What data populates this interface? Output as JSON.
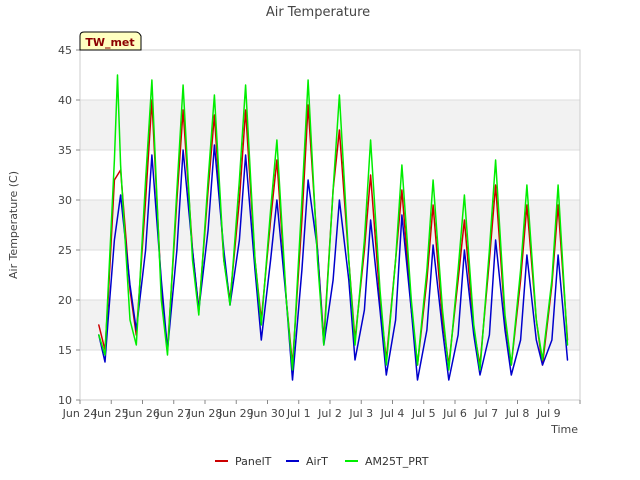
{
  "chart_data": {
    "type": "line",
    "title": "Air Temperature",
    "badge": "TW_met",
    "xlabel": "Time",
    "ylabel": "Air Temperature (C)",
    "ylim": [
      10,
      45
    ],
    "yticks": [
      10,
      15,
      20,
      25,
      30,
      35,
      40,
      45
    ],
    "xlim": [
      0,
      16
    ],
    "xticks": [
      0,
      1,
      2,
      3,
      4,
      5,
      6,
      7,
      8,
      9,
      10,
      11,
      12,
      13,
      14,
      15,
      16
    ],
    "xtick_labels": [
      "Jun 24",
      "Jun 25",
      "Jun 26",
      "Jun 27",
      "Jun 28",
      "Jun 29",
      "Jun 30",
      "Jul 1",
      "Jul 2",
      "Jul 3",
      "Jul 4",
      "Jul 5",
      "Jul 6",
      "Jul 7",
      "Jul 8",
      "Jul 9",
      ""
    ],
    "x_units": "days since Jun 23 00:00",
    "grid": true,
    "banded_background": true,
    "legend_position": "bottom",
    "series": [
      {
        "name": "PanelT",
        "color": "#cc0000",
        "x": [
          0.6,
          0.8,
          0.9,
          1.1,
          1.3,
          1.6,
          1.8,
          2.1,
          2.3,
          2.6,
          2.8,
          3.1,
          3.3,
          3.6,
          3.8,
          4.1,
          4.3,
          4.6,
          4.8,
          5.1,
          5.3,
          5.6,
          5.8,
          6.1,
          6.3,
          6.6,
          6.8,
          7.1,
          7.3,
          7.6,
          7.8,
          8.1,
          8.3,
          8.6,
          8.8,
          9.1,
          9.3,
          9.6,
          9.8,
          10.1,
          10.3,
          10.6,
          10.8,
          11.1,
          11.3,
          11.6,
          11.8,
          12.1,
          12.3,
          12.6,
          12.8,
          13.1,
          13.3,
          13.6,
          13.8,
          14.1,
          14.3,
          14.6,
          14.8,
          15.1,
          15.3,
          15.6
        ],
        "y": [
          17.5,
          15.0,
          20.0,
          32.0,
          33.0,
          21.0,
          16.5,
          30.0,
          40.0,
          21.0,
          15.0,
          30.0,
          39.0,
          25.0,
          19.0,
          31.0,
          38.5,
          24.0,
          20.0,
          30.0,
          39.0,
          24.0,
          18.0,
          28.0,
          34.0,
          20.0,
          13.5,
          28.0,
          39.5,
          25.0,
          16.0,
          31.0,
          37.0,
          24.0,
          16.0,
          25.0,
          32.5,
          20.0,
          14.0,
          24.0,
          31.0,
          19.0,
          13.5,
          22.0,
          29.5,
          18.0,
          13.5,
          22.0,
          28.0,
          17.0,
          13.5,
          24.0,
          31.5,
          18.0,
          13.5,
          22.0,
          29.5,
          18.0,
          13.5,
          21.5,
          29.5,
          16.0
        ]
      },
      {
        "name": "AirT",
        "color": "#0000cc",
        "x": [
          0.6,
          0.8,
          0.9,
          1.1,
          1.3,
          1.6,
          1.8,
          2.1,
          2.3,
          2.6,
          2.8,
          3.1,
          3.3,
          3.6,
          3.8,
          4.1,
          4.3,
          4.6,
          4.8,
          5.1,
          5.3,
          5.6,
          5.8,
          6.1,
          6.3,
          6.6,
          6.8,
          7.1,
          7.3,
          7.6,
          7.8,
          8.1,
          8.3,
          8.6,
          8.8,
          9.1,
          9.3,
          9.6,
          9.8,
          10.1,
          10.3,
          10.6,
          10.8,
          11.1,
          11.3,
          11.6,
          11.8,
          12.1,
          12.3,
          12.6,
          12.8,
          13.1,
          13.3,
          13.6,
          13.8,
          14.1,
          14.3,
          14.6,
          14.8,
          15.1,
          15.3,
          15.6
        ],
        "y": [
          16.5,
          13.8,
          18.0,
          26.0,
          30.5,
          21.5,
          17.0,
          25.0,
          34.5,
          22.0,
          15.0,
          25.0,
          35.0,
          25.0,
          19.0,
          27.0,
          35.5,
          25.0,
          19.5,
          26.0,
          34.5,
          23.0,
          16.0,
          24.0,
          30.0,
          20.0,
          12.0,
          23.0,
          32.0,
          25.0,
          15.5,
          22.0,
          30.0,
          22.0,
          14.0,
          19.0,
          28.0,
          19.0,
          12.5,
          18.0,
          28.5,
          19.0,
          12.0,
          17.0,
          25.5,
          17.0,
          12.0,
          16.5,
          25.0,
          16.5,
          12.5,
          16.5,
          26.0,
          17.0,
          12.5,
          16.0,
          24.5,
          16.0,
          13.5,
          16.0,
          24.5,
          14.0
        ]
      },
      {
        "name": "AM25T_PRT",
        "color": "#00ee00",
        "x": [
          0.6,
          0.8,
          0.9,
          1.1,
          1.2,
          1.3,
          1.6,
          1.8,
          2.1,
          2.3,
          2.6,
          2.8,
          3.1,
          3.3,
          3.6,
          3.8,
          4.1,
          4.3,
          4.6,
          4.8,
          5.1,
          5.3,
          5.6,
          5.8,
          6.1,
          6.3,
          6.6,
          6.8,
          7.1,
          7.3,
          7.6,
          7.8,
          8.1,
          8.3,
          8.6,
          8.8,
          9.1,
          9.3,
          9.6,
          9.8,
          10.1,
          10.3,
          10.6,
          10.8,
          11.1,
          11.3,
          11.6,
          11.8,
          12.1,
          12.3,
          12.6,
          12.8,
          13.1,
          13.3,
          13.6,
          13.8,
          14.1,
          14.3,
          14.6,
          14.8,
          15.1,
          15.3,
          15.6
        ],
        "y": [
          16.5,
          14.5,
          21.0,
          34.0,
          42.5,
          33.5,
          18.0,
          15.5,
          32.0,
          42.0,
          20.0,
          14.5,
          31.0,
          41.5,
          24.0,
          18.5,
          32.0,
          40.5,
          24.0,
          19.5,
          32.0,
          41.5,
          24.0,
          17.5,
          29.0,
          36.0,
          20.0,
          13.0,
          30.0,
          42.0,
          24.0,
          15.5,
          31.0,
          40.5,
          24.0,
          15.5,
          26.0,
          36.0,
          21.0,
          13.5,
          24.0,
          33.5,
          20.0,
          13.5,
          23.0,
          32.0,
          19.0,
          13.0,
          23.0,
          30.5,
          17.5,
          13.0,
          25.0,
          34.0,
          18.5,
          13.5,
          23.0,
          31.5,
          18.0,
          14.0,
          22.0,
          31.5,
          15.5
        ]
      }
    ]
  }
}
